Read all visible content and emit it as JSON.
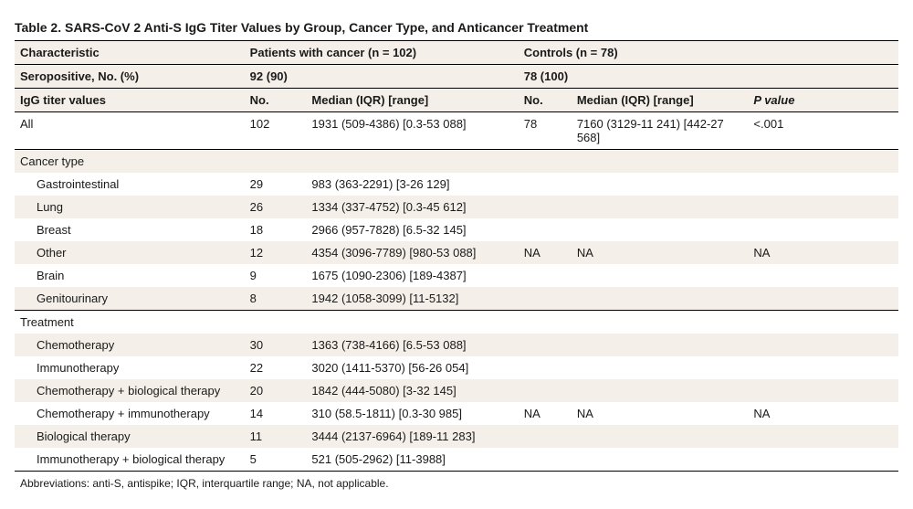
{
  "title": "Table 2. SARS-CoV 2 Anti-S IgG Titer Values by Group, Cancer Type, and Anticancer Treatment",
  "header": {
    "characteristic": "Characteristic",
    "group1": "Patients with cancer (n = 102)",
    "group2": "Controls (n = 78)",
    "seropos_label": "Seropositive, No. (%)",
    "seropos_g1": "92 (90)",
    "seropos_g2": "78 (100)",
    "igg_label": "IgG titer values",
    "no": "No.",
    "median": "Median (IQR) [range]",
    "pvalue": "P value"
  },
  "all_row": {
    "label": "All",
    "g1_no": "102",
    "g1_med": "1931 (509-4386) [0.3-53 088]",
    "g2_no": "78",
    "g2_med": "7160 (3129-11 241) [442-27 568]",
    "p": "<.001"
  },
  "cancer_section": {
    "label": "Cancer type",
    "na": "NA",
    "rows": [
      {
        "label": "Gastrointestinal",
        "no": "29",
        "med": "983 (363-2291) [3-26 129]"
      },
      {
        "label": "Lung",
        "no": "26",
        "med": "1334 (337-4752) [0.3-45 612]"
      },
      {
        "label": "Breast",
        "no": "18",
        "med": "2966 (957-7828) [6.5-32 145]"
      },
      {
        "label": "Other",
        "no": "12",
        "med": "4354 (3096-7789) [980-53 088]"
      },
      {
        "label": "Brain",
        "no": "9",
        "med": "1675 (1090-2306) [189-4387]"
      },
      {
        "label": "Genitourinary",
        "no": "8",
        "med": "1942 (1058-3099) [11-5132]"
      }
    ]
  },
  "treatment_section": {
    "label": "Treatment",
    "na": "NA",
    "rows": [
      {
        "label": "Chemotherapy",
        "no": "30",
        "med": "1363 (738-4166) [6.5-53 088]"
      },
      {
        "label": "Immunotherapy",
        "no": "22",
        "med": "3020 (1411-5370) [56-26 054]"
      },
      {
        "label": "Chemotherapy + biological therapy",
        "no": "20",
        "med": "1842 (444-5080) [3-32 145]"
      },
      {
        "label": "Chemotherapy + immunotherapy",
        "no": "14",
        "med": "310 (58.5-1811) [0.3-30 985]"
      },
      {
        "label": "Biological therapy",
        "no": "11",
        "med": "3444 (2137-6964) [189-11 283]"
      },
      {
        "label": "Immunotherapy + biological therapy",
        "no": "5",
        "med": "521 (505-2962) [11-3988]"
      }
    ]
  },
  "footnote": "Abbreviations: anti-S, antispike; IQR, interquartile range; NA, not applicable.",
  "colors": {
    "stripe": "#f4f0e9",
    "rule": "#000000",
    "text": "#1a1a1a"
  }
}
